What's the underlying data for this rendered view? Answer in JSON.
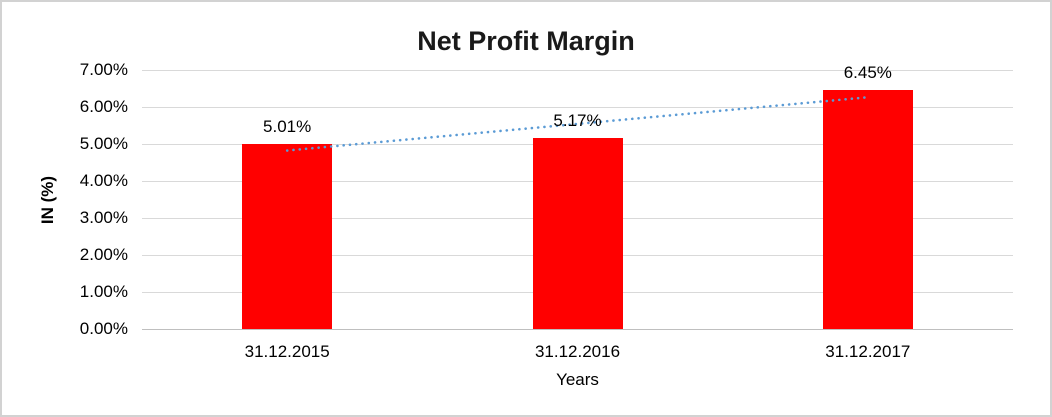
{
  "chart_data": {
    "type": "bar",
    "title": "Net Profit Margin",
    "categories": [
      "31.12.2015",
      "31.12.2016",
      "31.12.2017"
    ],
    "values": [
      5.01,
      5.17,
      6.45
    ],
    "data_labels": [
      "5.01%",
      "5.17%",
      "6.45%"
    ],
    "xlabel": "Years",
    "ylabel": "IN (%)",
    "ylim": [
      0,
      7
    ],
    "ytick_step": 1,
    "ytick_labels": [
      "0.00%",
      "1.00%",
      "2.00%",
      "3.00%",
      "4.00%",
      "5.00%",
      "6.00%",
      "7.00%"
    ],
    "grid": true,
    "legend": "none",
    "colors": {
      "bar": "#ff0000",
      "trendline": "#5b9bd5",
      "gridline": "#d9d9d9",
      "axis_line": "#bfbfbf",
      "text": "#000000",
      "frame_border": "#d2d2d2"
    },
    "trendline": {
      "type": "linear",
      "style": "dotted"
    }
  }
}
